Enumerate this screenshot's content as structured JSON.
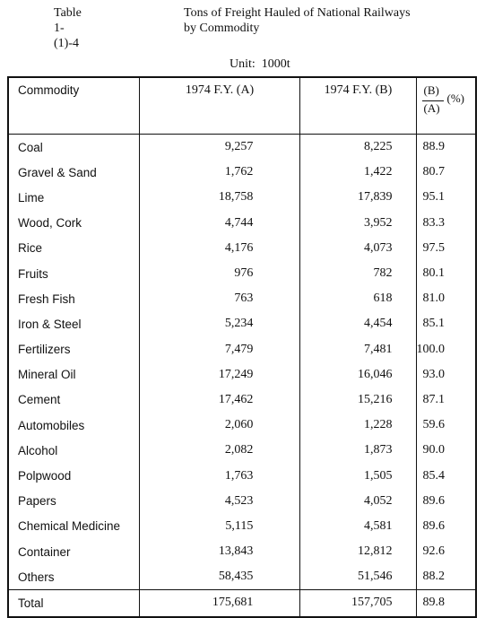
{
  "header": {
    "table_number": "Table 1-(1)-4",
    "title_line1": "Tons of Freight Hauled of National Railways",
    "title_line2": "by Commodity",
    "unit": "Unit:  1000t"
  },
  "table": {
    "columns": [
      "Commodity",
      "1974 F.Y. (A)",
      "1974 F.Y. (B)"
    ],
    "ratio_header": {
      "numerator": "(B)",
      "denominator": "(A)",
      "unit": "(%)"
    },
    "rows": [
      [
        "Coal",
        "9,257",
        "8,225",
        "88.9"
      ],
      [
        "Gravel & Sand",
        "1,762",
        "1,422",
        "80.7"
      ],
      [
        "Lime",
        "18,758",
        "17,839",
        "95.1"
      ],
      [
        "Wood, Cork",
        "4,744",
        "3,952",
        "83.3"
      ],
      [
        "Rice",
        "4,176",
        "4,073",
        "97.5"
      ],
      [
        "Fruits",
        "976",
        "782",
        "80.1"
      ],
      [
        "Fresh Fish",
        "763",
        "618",
        "81.0"
      ],
      [
        "Iron & Steel",
        "5,234",
        "4,454",
        "85.1"
      ],
      [
        "Fertilizers",
        "7,479",
        "7,481",
        "100.0"
      ],
      [
        "Mineral Oil",
        "17,249",
        "16,046",
        "93.0"
      ],
      [
        "Cement",
        "17,462",
        "15,216",
        "87.1"
      ],
      [
        "Automobiles",
        "2,060",
        "1,228",
        "59.6"
      ],
      [
        "Alcohol",
        "2,082",
        "1,873",
        "90.0"
      ],
      [
        "Polpwood",
        "1,763",
        "1,505",
        "85.4"
      ],
      [
        "Papers",
        "4,523",
        "4,052",
        "89.6"
      ],
      [
        "Chemical Medicine",
        "5,115",
        "4,581",
        "89.6"
      ],
      [
        "Container",
        "13,843",
        "12,812",
        "92.6"
      ],
      [
        "Others",
        "58,435",
        "51,546",
        "88.2"
      ]
    ],
    "total": [
      "Total",
      "175,681",
      "157,705",
      "89.8"
    ]
  }
}
